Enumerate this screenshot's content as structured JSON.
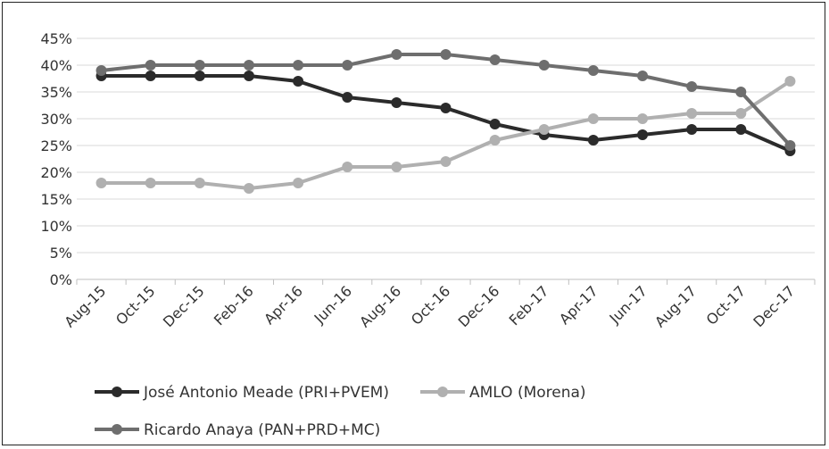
{
  "chart_data": {
    "type": "line",
    "title": "",
    "xlabel": "",
    "ylabel": "",
    "ylim": [
      0,
      45
    ],
    "y_ticks": [
      "0%",
      "5%",
      "10%",
      "15%",
      "20%",
      "25%",
      "30%",
      "35%",
      "40%",
      "45%"
    ],
    "grid": "horizontal",
    "legend_position": "bottom",
    "categories": [
      "Aug-15",
      "Oct-15",
      "Dec-15",
      "Feb-16",
      "Apr-16",
      "Jun-16",
      "Aug-16",
      "Oct-16",
      "Dec-16",
      "Feb-17",
      "Apr-17",
      "Jun-17",
      "Aug-17",
      "Oct-17",
      "Dec-17"
    ],
    "series": [
      {
        "name": "José Antonio Meade (PRI+PVEM)",
        "color": "#2b2b2b",
        "values": [
          38,
          38,
          38,
          38,
          37,
          34,
          33,
          32,
          29,
          27,
          26,
          27,
          28,
          28,
          24
        ]
      },
      {
        "name": "AMLO (Morena)",
        "color": "#b0b0b0",
        "values": [
          18,
          18,
          18,
          17,
          18,
          21,
          21,
          22,
          26,
          28,
          30,
          30,
          31,
          31,
          37
        ]
      },
      {
        "name": "Ricardo Anaya (PAN+PRD+MC)",
        "color": "#6e6e6e",
        "values": [
          39,
          40,
          40,
          40,
          40,
          40,
          42,
          42,
          41,
          40,
          39,
          38,
          36,
          35,
          25
        ]
      }
    ]
  }
}
